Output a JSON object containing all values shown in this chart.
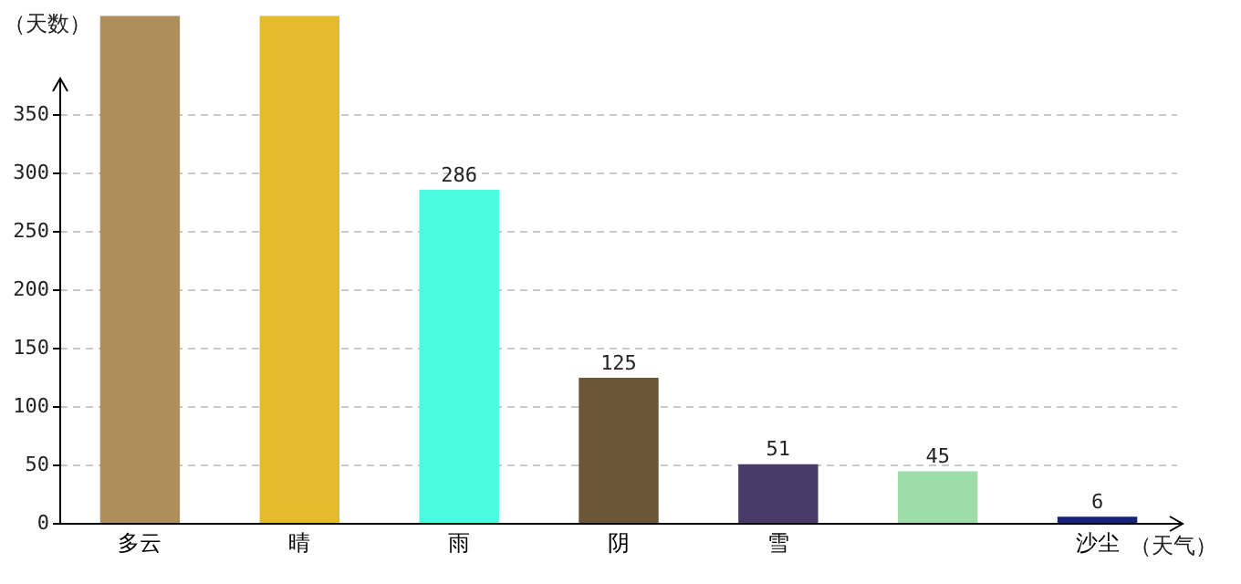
{
  "chart_data": {
    "type": "bar",
    "ylabel": "（天数）",
    "xlabel": "（天气）",
    "categories": [
      "多云",
      "晴",
      "雨",
      "阴",
      "雪",
      null,
      "沙尘"
    ],
    "values": [
      435,
      435,
      286,
      125,
      51,
      45,
      6
    ],
    "colors": [
      "#ae8f5c",
      "#e4bb2c",
      "#4bfbe1",
      "#6b5735",
      "#4a3a6a",
      "#9edcaa",
      "#152476"
    ],
    "value_labels": [
      null,
      null,
      "286",
      "125",
      "51",
      "45",
      "6"
    ],
    "ylim": [
      0,
      435
    ],
    "yticks": [
      0,
      50,
      100,
      150,
      200,
      250,
      300,
      350
    ],
    "grid": "y"
  }
}
